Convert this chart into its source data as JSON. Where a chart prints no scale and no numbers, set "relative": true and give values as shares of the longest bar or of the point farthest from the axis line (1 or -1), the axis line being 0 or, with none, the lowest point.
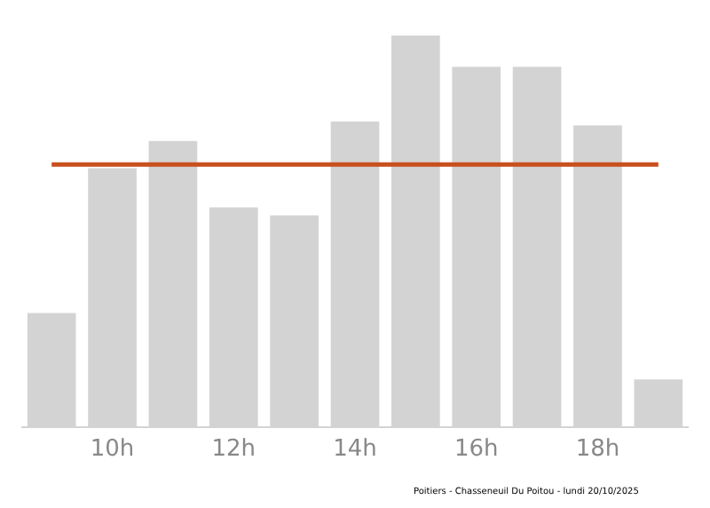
{
  "chart_data": {
    "type": "bar",
    "relative": true,
    "categories": [
      null,
      "10h",
      null,
      "12h",
      null,
      "14h",
      null,
      "16h",
      null,
      "18h",
      null
    ],
    "values": [
      0.29,
      0.66,
      0.73,
      0.56,
      0.54,
      0.78,
      1,
      0.92,
      0.92,
      0.77,
      0.12
    ],
    "color": "#d3d3d3",
    "ref_lines": [
      {
        "axis": "y",
        "value": 0.67,
        "color": "#c8501e"
      }
    ],
    "grid": false,
    "annotations": [
      "Poitiers - Chasseneuil Du Poitou - lundi 20/10/2025"
    ]
  }
}
